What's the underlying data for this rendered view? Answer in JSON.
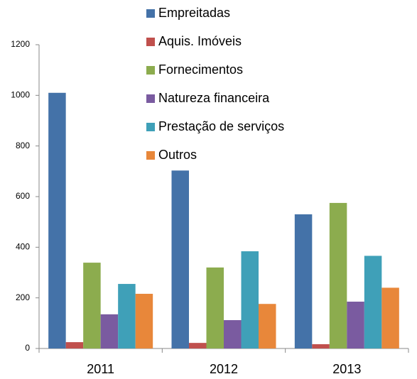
{
  "chart_data": {
    "type": "bar",
    "categories": [
      "2011",
      "2012",
      "2013"
    ],
    "series": [
      {
        "name": "Empreitadas",
        "color": "#4472a8",
        "values": [
          1010,
          703,
          530
        ]
      },
      {
        "name": "Aquis. Imóveis",
        "color": "#c0504d",
        "values": [
          25,
          22,
          17
        ]
      },
      {
        "name": "Fornecimentos",
        "color": "#8cac4e",
        "values": [
          339,
          320,
          575
        ]
      },
      {
        "name": "Natureza financeira",
        "color": "#7a5ba0",
        "values": [
          135,
          112,
          185
        ]
      },
      {
        "name": "Prestação de serviços",
        "color": "#3fa0b8",
        "values": [
          255,
          384,
          366
        ]
      },
      {
        "name": "Outros",
        "color": "#e8873a",
        "values": [
          216,
          176,
          240
        ]
      }
    ],
    "ylim": [
      0,
      1200
    ],
    "yticks": [
      0,
      200,
      400,
      600,
      800,
      1000,
      1200
    ],
    "grid": false
  }
}
